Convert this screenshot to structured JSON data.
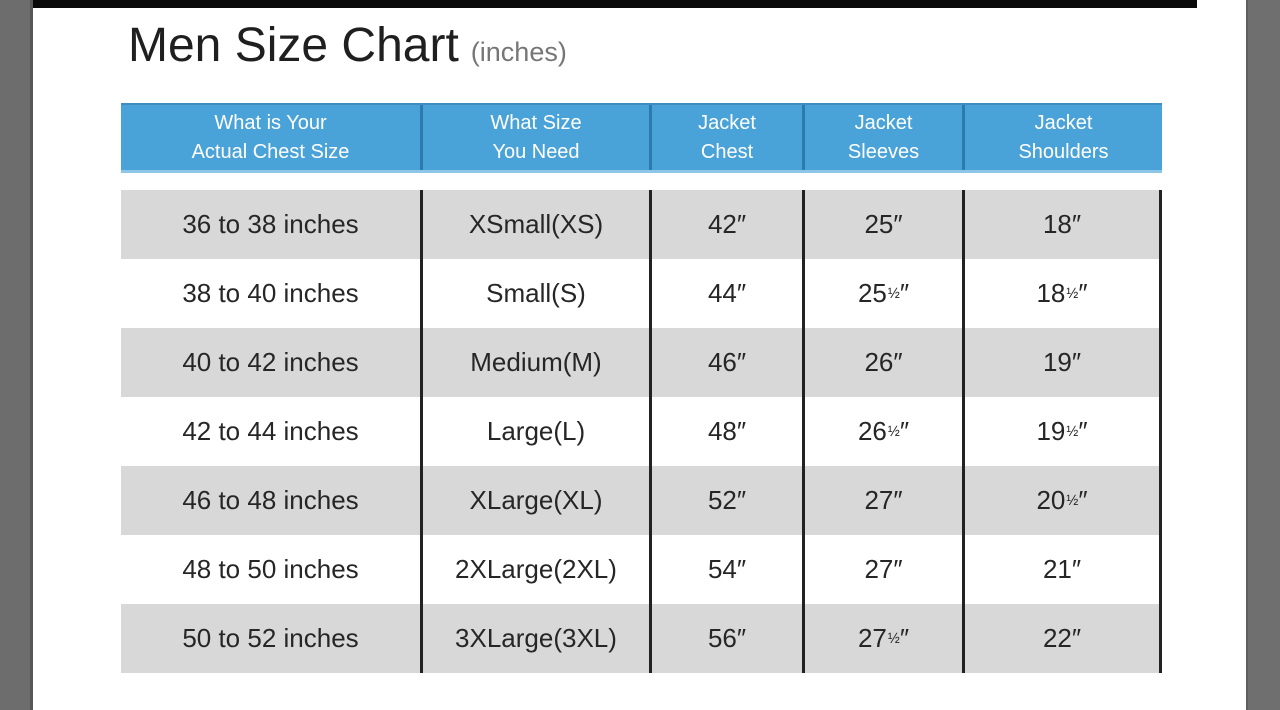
{
  "title": {
    "text": "Men Size Chart",
    "suffix": "(inches)"
  },
  "colors": {
    "header_bg": "#4aa3d8",
    "header_divider": "#2d7aad",
    "header_text": "#ffffff",
    "row_alt_bg": "#d8d8d8",
    "row_bg": "#ffffff",
    "body_divider": "#222222",
    "body_text": "#262626",
    "title_text": "#1f1f1f",
    "subtitle_text": "#767676",
    "side_strip": "#6d6d6d",
    "top_bar": "#0a0a0a"
  },
  "table": {
    "headers": [
      {
        "line1": "What is Your",
        "line2": "Actual Chest Size"
      },
      {
        "line1": "What Size",
        "line2": "You Need"
      },
      {
        "line1": "Jacket",
        "line2": "Chest"
      },
      {
        "line1": "Jacket",
        "line2": "Sleeves"
      },
      {
        "line1": "Jacket",
        "line2": "Shoulders"
      }
    ],
    "rows": [
      [
        "36 to 38 inches",
        "XSmall(XS)",
        "42″",
        "25″",
        "18″"
      ],
      [
        "38 to 40 inches",
        "Small(S)",
        "44″",
        "25½″",
        "18½″"
      ],
      [
        "40 to 42 inches",
        "Medium(M)",
        "46″",
        "26″",
        "19″"
      ],
      [
        "42 to 44 inches",
        "Large(L)",
        "48″",
        "26½″",
        "19½″"
      ],
      [
        "46 to 48 inches",
        "XLarge(XL)",
        "52″",
        "27″",
        "20½″"
      ],
      [
        "48 to 50 inches",
        "2XLarge(2XL)",
        "54″",
        "27″",
        "21″"
      ],
      [
        "50 to 52 inches",
        "3XLarge(3XL)",
        "56″",
        "27½″",
        "22″"
      ]
    ]
  },
  "chart_data": {
    "type": "table",
    "title": "Men Size Chart",
    "subtitle": "(inches)",
    "units": "inches",
    "columns": [
      "What is Your Actual Chest Size",
      "What Size You Need",
      "Jacket Chest",
      "Jacket Sleeves",
      "Jacket Shoulders"
    ],
    "rows": [
      [
        "36 to 38 inches",
        "XSmall(XS)",
        42,
        25,
        18
      ],
      [
        "38 to 40 inches",
        "Small(S)",
        44,
        25.5,
        18.5
      ],
      [
        "40 to 42 inches",
        "Medium(M)",
        46,
        26,
        19
      ],
      [
        "42 to 44 inches",
        "Large(L)",
        48,
        26.5,
        19.5
      ],
      [
        "46 to 48 inches",
        "XLarge(XL)",
        52,
        27,
        20.5
      ],
      [
        "48 to 50 inches",
        "2XLarge(2XL)",
        54,
        27,
        21
      ],
      [
        "50 to 52 inches",
        "3XLarge(3XL)",
        56,
        27.5,
        22
      ]
    ]
  }
}
